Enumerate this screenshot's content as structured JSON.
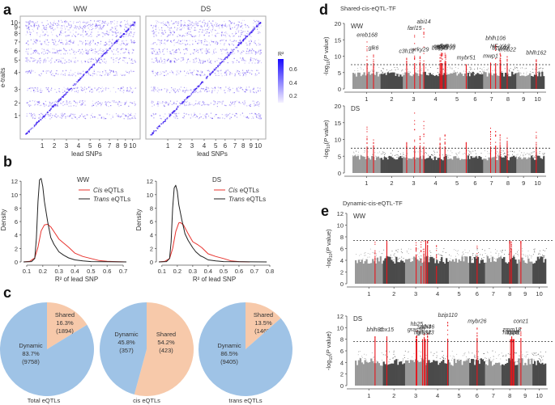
{
  "figure": {
    "panel_letters": [
      "a",
      "b",
      "c",
      "d",
      "e"
    ]
  },
  "chart_data": [
    {
      "id": "a",
      "type": "heatmap",
      "title": "",
      "subplots": [
        {
          "title": "WW",
          "xlabel": "lead SNPs",
          "ylabel": "e-traits"
        },
        {
          "title": "DS",
          "xlabel": "lead SNPs",
          "ylabel": ""
        }
      ],
      "x_ticks": [
        "1",
        "2",
        "3",
        "4",
        "5",
        "6",
        "7",
        "8",
        "9",
        "10"
      ],
      "y_ticks": [
        "1",
        "2",
        "3",
        "4",
        "5",
        "6",
        "7",
        "8",
        "9",
        "10"
      ],
      "colorbar": {
        "title": "R²",
        "ticks": [
          "0.6",
          "0.4",
          "0.2"
        ],
        "range": [
          0.1,
          0.7
        ],
        "color_low": "#f4f0ff",
        "color_high": "#1a0aff"
      },
      "pattern": "diagonal cis band with scattered off-diagonal trans points"
    },
    {
      "id": "b",
      "type": "line",
      "subplots": [
        {
          "title": "WW",
          "xlabel": "R² of lead SNP",
          "ylabel": "Density",
          "xlim": [
            0.08,
            0.74
          ],
          "ylim": [
            0,
            12.5
          ],
          "x_ticks": [
            0.1,
            0.2,
            0.3,
            0.4,
            0.5,
            0.6,
            0.7
          ],
          "y_ticks": [
            0,
            2,
            4,
            6,
            8,
            10,
            12
          ],
          "series": [
            {
              "name": "Cis eQTLs",
              "color": "#e8332e",
              "x": [
                0.08,
                0.12,
                0.15,
                0.17,
                0.19,
                0.21,
                0.23,
                0.25,
                0.27,
                0.3,
                0.33,
                0.36,
                0.4,
                0.45,
                0.5,
                0.55,
                0.6,
                0.65,
                0.72
              ],
              "y": [
                0,
                0.1,
                0.6,
                2.2,
                4.6,
                5.5,
                5.6,
                5.2,
                4.5,
                3.4,
                2.8,
                2.2,
                1.3,
                0.8,
                0.5,
                0.2,
                0.1,
                0.05,
                0
              ]
            },
            {
              "name": "Trans eQTLs",
              "color": "#222222",
              "x": [
                0.08,
                0.13,
                0.15,
                0.16,
                0.17,
                0.18,
                0.19,
                0.2,
                0.21,
                0.23,
                0.25,
                0.27,
                0.3,
                0.33,
                0.36,
                0.4,
                0.45,
                0.5,
                0.6,
                0.72
              ],
              "y": [
                0,
                0.05,
                0.5,
                3.5,
                9,
                12.2,
                12.4,
                11.2,
                9,
                6,
                3.6,
                2.6,
                1.5,
                1.0,
                0.6,
                0.3,
                0.15,
                0.05,
                0.02,
                0
              ]
            }
          ],
          "legend": "top-right"
        },
        {
          "title": "DS",
          "xlabel": "R² of lead SNP",
          "ylabel": "Density",
          "xlim": [
            0.08,
            0.8
          ],
          "ylim": [
            0,
            12.5
          ],
          "x_ticks": [
            0.1,
            0.2,
            0.3,
            0.4,
            0.5,
            0.6,
            0.7,
            0.8
          ],
          "y_ticks": [
            0,
            2,
            4,
            6,
            8,
            10,
            12
          ],
          "series": [
            {
              "name": "Cis eQTLs",
              "color": "#e8332e",
              "x": [
                0.08,
                0.12,
                0.15,
                0.17,
                0.19,
                0.21,
                0.22,
                0.24,
                0.27,
                0.3,
                0.33,
                0.36,
                0.4,
                0.45,
                0.5,
                0.55,
                0.6,
                0.67
              ],
              "y": [
                0,
                0.1,
                0.5,
                2,
                4.5,
                5.8,
                5.85,
                5.5,
                4.2,
                3.0,
                2.6,
                2.1,
                1.2,
                0.8,
                0.5,
                0.15,
                0.05,
                0
              ]
            },
            {
              "name": "Trans eQTLs",
              "color": "#222222",
              "x": [
                0.08,
                0.13,
                0.15,
                0.16,
                0.17,
                0.18,
                0.19,
                0.2,
                0.21,
                0.23,
                0.25,
                0.27,
                0.3,
                0.32,
                0.35,
                0.37,
                0.4,
                0.45,
                0.5,
                0.6,
                0.78
              ],
              "y": [
                0,
                0.05,
                0.5,
                3,
                8,
                11,
                11.4,
                10.5,
                8.5,
                6.2,
                4.2,
                3.2,
                2.1,
                1.5,
                0.9,
                0.7,
                0.3,
                0.15,
                0.05,
                0.02,
                0
              ]
            }
          ],
          "legend": "top-right"
        }
      ]
    },
    {
      "id": "c",
      "type": "pie",
      "subplots": [
        {
          "title": "Total eQTLs",
          "slices": [
            {
              "label": "Shared",
              "percent": "16.3%",
              "count": "(1894)",
              "value": 1894,
              "color": "#f7c9aa"
            },
            {
              "label": "Dynamic",
              "percent": "83.7%",
              "count": "(9758)",
              "value": 9758,
              "color": "#9fc3e6"
            }
          ]
        },
        {
          "title": "cis eQTLs",
          "slices": [
            {
              "label": "Shared",
              "percent": "54.2%",
              "count": "(423)",
              "value": 423,
              "color": "#f7c9aa"
            },
            {
              "label": "Dynamic",
              "percent": "45.8%",
              "count": "(357)",
              "value": 357,
              "color": "#9fc3e6"
            }
          ]
        },
        {
          "title": "trans eQTLs",
          "slices": [
            {
              "label": "Shared",
              "percent": "13.5%",
              "count": "(1469)",
              "value": 1469,
              "color": "#f7c9aa"
            },
            {
              "label": "Dynamic",
              "percent": "86.5%",
              "count": "(9405)",
              "value": 9405,
              "color": "#9fc3e6"
            }
          ]
        }
      ]
    },
    {
      "id": "d",
      "type": "scatter",
      "title": "Shared-cis-eQTL-TF",
      "ylabel": "-log10(P value)",
      "chromosomes": [
        "1",
        "2",
        "3",
        "4",
        "5",
        "6",
        "7",
        "8",
        "9",
        "10"
      ],
      "chrom_lengths": [
        308,
        244,
        235,
        247,
        224,
        174,
        182,
        181,
        159,
        150
      ],
      "colors": {
        "odd": "#999999",
        "even": "#4a4a4a",
        "highlight": "#e8141b",
        "threshold": "#333333"
      },
      "subplots": [
        {
          "title": "WW",
          "ylim": [
            0,
            20
          ],
          "y_ticks": [
            0,
            5,
            10,
            15,
            20
          ],
          "threshold": 7.4,
          "background_max": 5,
          "hits": [
            {
              "label": "ereb168",
              "chr": 1,
              "pos": 0.52,
              "peak": 14.5
            },
            {
              "label": "glk6",
              "chr": 1,
              "pos": 0.75,
              "peak": 10.5
            },
            {
              "label": "c3h12",
              "chr": 3,
              "pos": 0.18,
              "peak": 9.5
            },
            {
              "label": "farl15",
              "chr": 3,
              "pos": 0.55,
              "peak": 16.5
            },
            {
              "label": "wrky29",
              "chr": 3,
              "pos": 0.8,
              "peak": 10
            },
            {
              "label": "abi14",
              "chr": 3,
              "pos": 0.98,
              "peak": 18.5
            },
            {
              "label": "bzip79",
              "chr": 4,
              "pos": 0.7,
              "peak": 10.5
            },
            {
              "label": "ca5p9",
              "chr": 4,
              "pos": 0.75,
              "peak": 11
            },
            {
              "label": "glk8",
              "chr": 4,
              "pos": 0.8,
              "peak": 11
            },
            {
              "label": "wrky109",
              "chr": 4,
              "pos": 0.92,
              "peak": 11
            },
            {
              "label": "mybr99",
              "chr": 4,
              "pos": 0.95,
              "peak": 10.5
            },
            {
              "label": "mybr51",
              "chr": 5,
              "pos": 0.95,
              "peak": 7.5
            },
            {
              "label": "mwp1",
              "chr": 7,
              "pos": 0.45,
              "peak": 8
            },
            {
              "label": "bhlh106",
              "chr": 7,
              "pos": 0.75,
              "peak": 13.5
            },
            {
              "label": "NF-YA3",
              "chr": 8,
              "pos": 0.02,
              "peak": 11
            },
            {
              "label": "bzip92",
              "chr": 8,
              "pos": 0.05,
              "peak": 10.5
            },
            {
              "label": "ereb22",
              "chr": 8,
              "pos": 0.45,
              "peak": 10
            },
            {
              "label": "bhlh162",
              "chr": 10,
              "pos": 0.4,
              "peak": 9
            }
          ]
        },
        {
          "title": "DS",
          "ylim": [
            0,
            20
          ],
          "y_ticks": [
            0,
            5,
            10,
            15,
            20
          ],
          "threshold": 7.4,
          "background_max": 5,
          "hits": [
            {
              "label": "",
              "chr": 1,
              "pos": 0.52,
              "peak": 13.8
            },
            {
              "label": "",
              "chr": 1,
              "pos": 0.75,
              "peak": 10
            },
            {
              "label": "",
              "chr": 3,
              "pos": 0.18,
              "peak": 9.2
            },
            {
              "label": "",
              "chr": 3,
              "pos": 0.55,
              "peak": 18
            },
            {
              "label": "",
              "chr": 3,
              "pos": 0.8,
              "peak": 11
            },
            {
              "label": "",
              "chr": 3,
              "pos": 0.98,
              "peak": 15.5
            },
            {
              "label": "",
              "chr": 4,
              "pos": 0.7,
              "peak": 10.5
            },
            {
              "label": "",
              "chr": 4,
              "pos": 0.92,
              "peak": 11.5
            },
            {
              "label": "",
              "chr": 5,
              "pos": 0.95,
              "peak": 9.2
            },
            {
              "label": "",
              "chr": 7,
              "pos": 0.45,
              "peak": 13.5
            },
            {
              "label": "",
              "chr": 7,
              "pos": 0.75,
              "peak": 12.5
            },
            {
              "label": "",
              "chr": 8,
              "pos": 0.02,
              "peak": 11.5
            },
            {
              "label": "",
              "chr": 8,
              "pos": 0.45,
              "peak": 10.5
            },
            {
              "label": "",
              "chr": 10,
              "pos": 0.4,
              "peak": 12.3
            }
          ]
        }
      ]
    },
    {
      "id": "e",
      "type": "scatter",
      "title": "Dynamic-cis-eQTL-TF",
      "ylabel": "-log10(P value)",
      "chromosomes": [
        "1",
        "2",
        "3",
        "4",
        "5",
        "6",
        "7",
        "8",
        "9",
        "10"
      ],
      "chrom_lengths": [
        308,
        244,
        235,
        247,
        224,
        174,
        182,
        181,
        159,
        150
      ],
      "colors": {
        "odd": "#999999",
        "even": "#4a4a4a",
        "highlight": "#e8141b",
        "threshold": "#333333"
      },
      "subplots": [
        {
          "title": "WW",
          "ylim": [
            0,
            12
          ],
          "y_ticks": [
            0,
            2,
            4,
            6,
            8,
            10,
            12
          ],
          "threshold": 7.4,
          "background_max": 4.5,
          "hits": [
            {
              "label": "",
              "chr": 1,
              "pos": 0.72,
              "peak": 4.5
            },
            {
              "label": "",
              "chr": 2,
              "pos": 0.18,
              "peak": 7
            },
            {
              "label": "",
              "chr": 3,
              "pos": 0.52,
              "peak": 5
            },
            {
              "label": "",
              "chr": 3,
              "pos": 0.75,
              "peak": 3
            },
            {
              "label": "",
              "chr": 3,
              "pos": 0.88,
              "peak": 5
            },
            {
              "label": "",
              "chr": 3,
              "pos": 0.97,
              "peak": 7
            },
            {
              "label": "",
              "chr": 4,
              "pos": 0.05,
              "peak": 6.5
            },
            {
              "label": "",
              "chr": 4,
              "pos": 0.45,
              "peak": 3
            },
            {
              "label": "",
              "chr": 6,
              "pos": 0.5,
              "peak": 4
            },
            {
              "label": "",
              "chr": 8,
              "pos": 0.5,
              "peak": 7
            },
            {
              "label": "",
              "chr": 8,
              "pos": 0.6,
              "peak": 6
            },
            {
              "label": "",
              "chr": 9,
              "pos": 0.2,
              "peak": 7
            }
          ]
        },
        {
          "title": "DS",
          "ylim": [
            0,
            12
          ],
          "y_ticks": [
            0,
            2,
            4,
            6,
            8,
            10,
            12
          ],
          "threshold": 7.6,
          "background_max": 4.5,
          "hits": [
            {
              "label": "bhlh81",
              "chr": 1,
              "pos": 0.72,
              "peak": 8.5
            },
            {
              "label": "thx15",
              "chr": 2,
              "pos": 0.18,
              "peak": 8.5
            },
            {
              "label": "gras50",
              "chr": 3,
              "pos": 0.52,
              "peak": 8.5
            },
            {
              "label": "hb25",
              "chr": 3,
              "pos": 0.55,
              "peak": 9.5
            },
            {
              "label": "myb32",
              "chr": 3,
              "pos": 0.82,
              "peak": 8
            },
            {
              "label": "smh4",
              "chr": 3,
              "pos": 0.9,
              "peak": 9
            },
            {
              "label": "gras43",
              "chr": 3,
              "pos": 0.95,
              "peak": 8
            },
            {
              "label": "abi36",
              "chr": 4,
              "pos": 0.05,
              "peak": 9
            },
            {
              "label": "bzip110",
              "chr": 4,
              "pos": 0.95,
              "peak": 11
            },
            {
              "label": "mybr26",
              "chr": 6,
              "pos": 0.5,
              "peak": 10
            },
            {
              "label": "hb123",
              "chr": 8,
              "pos": 0.55,
              "peak": 8
            },
            {
              "label": "zmm18",
              "chr": 8,
              "pos": 0.62,
              "peak": 8.5
            },
            {
              "label": "cpp8",
              "chr": 8,
              "pos": 0.7,
              "peak": 8
            },
            {
              "label": "hox1",
              "chr": 8,
              "pos": 0.75,
              "peak": 8
            },
            {
              "label": "conz1",
              "chr": 9,
              "pos": 0.2,
              "peak": 10
            }
          ]
        }
      ]
    }
  ]
}
